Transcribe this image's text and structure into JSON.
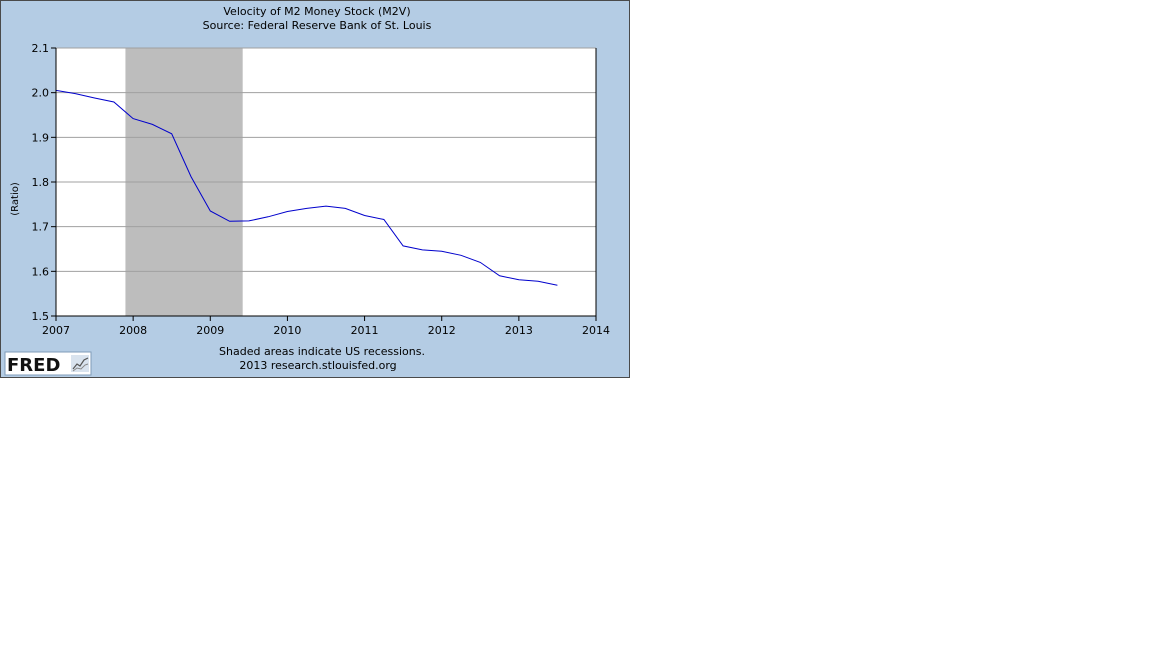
{
  "chart_data": {
    "type": "line",
    "title": "Velocity of M2 Money Stock (M2V)",
    "subtitle": "Source: Federal Reserve Bank of St. Louis",
    "ylabel": "(Ratio)",
    "xlim": [
      2007,
      2014
    ],
    "ylim": [
      1.5,
      2.1
    ],
    "x_ticks": [
      "2007",
      "2008",
      "2009",
      "2010",
      "2011",
      "2012",
      "2013",
      "2014"
    ],
    "y_ticks": [
      "1.5",
      "1.6",
      "1.7",
      "1.8",
      "1.9",
      "2.0",
      "2.1"
    ],
    "grid": true,
    "recession_shading": [
      {
        "start": 2007.9,
        "end": 2009.42
      }
    ],
    "series": [
      {
        "color": "#0000cc",
        "x": [
          2007.0,
          2007.25,
          2007.5,
          2007.75,
          2008.0,
          2008.25,
          2008.5,
          2008.75,
          2009.0,
          2009.25,
          2009.5,
          2009.75,
          2010.0,
          2010.25,
          2010.5,
          2010.75,
          2011.0,
          2011.25,
          2011.5,
          2011.75,
          2012.0,
          2012.25,
          2012.5,
          2012.75,
          2013.0,
          2013.25,
          2013.5
        ],
        "y": [
          2.005,
          1.998,
          1.988,
          1.979,
          1.942,
          1.929,
          1.908,
          1.812,
          1.735,
          1.712,
          1.713,
          1.722,
          1.734,
          1.741,
          1.746,
          1.741,
          1.725,
          1.716,
          1.657,
          1.648,
          1.645,
          1.636,
          1.62,
          1.59,
          1.581,
          1.578,
          1.569
        ]
      }
    ],
    "note_line1": "Shaded areas indicate US recessions.",
    "note_line2": "2013 research.stlouisfed.org"
  },
  "logo": {
    "text": "FRED",
    "icon": "fred-chart-icon"
  }
}
